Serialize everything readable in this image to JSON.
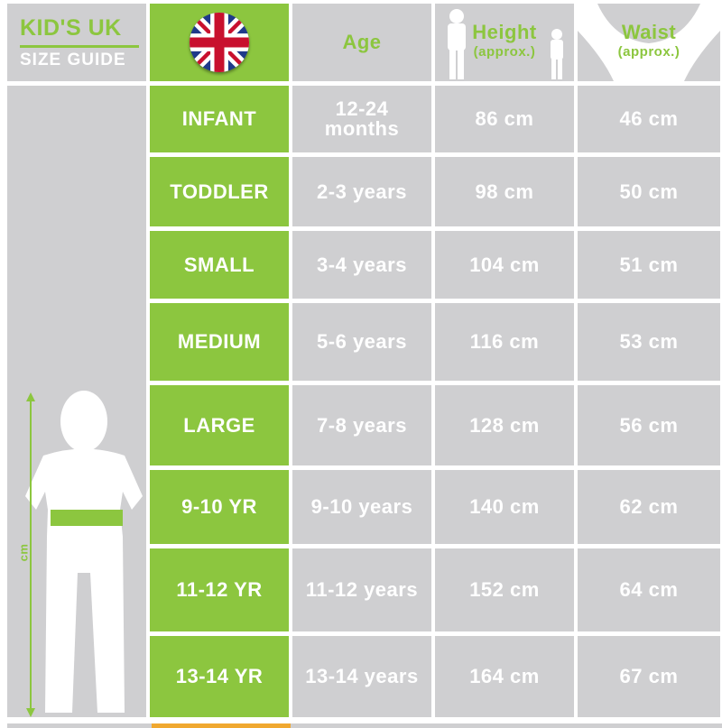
{
  "brand": {
    "line1": "KID'S UK",
    "line2": "SIZE GUIDE"
  },
  "header": {
    "flag_icon": "uk-flag-icon",
    "age": "Age",
    "height": "Height",
    "height_sub": "(approx.)",
    "waist": "Waist",
    "waist_sub": "(approx.)"
  },
  "figure": {
    "unit_label": "cm"
  },
  "colors": {
    "green": "#8cc63f",
    "gray": "#cfcfd1",
    "orange": "#f0a830"
  },
  "rows": [
    {
      "size": "INFANT",
      "age": "12-24 months",
      "height": "86 cm",
      "waist": "46 cm"
    },
    {
      "size": "TODDLER",
      "age": "2-3 years",
      "height": "98 cm",
      "waist": "50 cm"
    },
    {
      "size": "SMALL",
      "age": "3-4 years",
      "height": "104 cm",
      "waist": "51 cm"
    },
    {
      "size": "MEDIUM",
      "age": "5-6 years",
      "height": "116 cm",
      "waist": "53 cm"
    },
    {
      "size": "LARGE",
      "age": "7-8 years",
      "height": "128 cm",
      "waist": "56 cm"
    },
    {
      "size": "9-10 YR",
      "age": "9-10 years",
      "height": "140 cm",
      "waist": "62 cm"
    },
    {
      "size": "11-12 YR",
      "age": "11-12 years",
      "height": "152 cm",
      "waist": "64 cm"
    },
    {
      "size": "13-14 YR",
      "age": "13-14 years",
      "height": "164 cm",
      "waist": "67 cm"
    }
  ]
}
